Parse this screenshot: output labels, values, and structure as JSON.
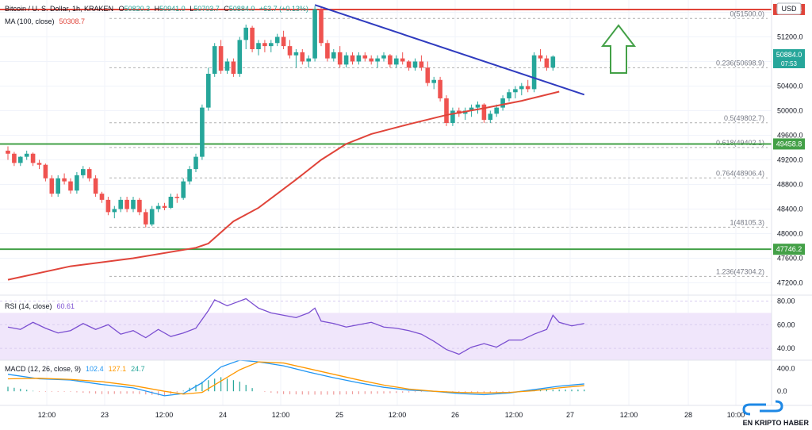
{
  "header": {
    "symbol": "Bitcoin / U. S. Dollar, 1h, KRAKEN",
    "ohlc": [
      {
        "k": "O",
        "v": "50820.3"
      },
      {
        "k": "H",
        "v": "50941.0"
      },
      {
        "k": "L",
        "v": "50703.7"
      },
      {
        "k": "C",
        "v": "50884.0"
      }
    ],
    "change": "+63.7 (+0.13%)",
    "currency": "USD"
  },
  "ma_legend": {
    "label": "MA (100, close)",
    "value": "50308.7",
    "color": "#e0443a"
  },
  "rsi_legend": {
    "label": "RSI (14, close)",
    "value": "60.61",
    "color": "#7b4fd1"
  },
  "macd_legend": {
    "label": "MACD (12, 26, close, 9)",
    "v1": "102.4",
    "v2": "127.1",
    "v3": "24.7"
  },
  "last_price": {
    "price": "50884.0",
    "countdown": "07:53"
  },
  "levels": {
    "red_label": "51645.8",
    "green1_label": "49458.8",
    "green2_label": "47746.2"
  },
  "watermark": "EN KRIPTO HABER",
  "colors": {
    "up": "#26a69a",
    "down": "#ef5350",
    "ma": "#e0443a",
    "trend": "#2f3bbf",
    "red_line": "#e0443a",
    "green_line": "#43a047",
    "arrow": "#43a047",
    "rsi": "#7b4fd1",
    "macd": "#2196f3",
    "signal": "#ff9800"
  },
  "icons": {
    "arrow": "up-arrow-icon",
    "logo": "chain-link-logo"
  },
  "chart_data": [
    {
      "type": "candlestick",
      "title": "Bitcoin / U. S. Dollar, 1h, KRAKEN",
      "ylim": [
        47000,
        51800
      ],
      "yticks": [
        47200,
        47600,
        48000,
        48400,
        48800,
        49200,
        49600,
        50000,
        50400,
        50800,
        51200,
        51600
      ],
      "xticks": [
        "12:00",
        "23",
        "12:00",
        "24",
        "12:00",
        "25",
        "12:00",
        "26",
        "12:00",
        "27",
        "12:00",
        "28",
        "10:00"
      ],
      "grid": true,
      "candles": [
        [
          49350,
          49420,
          49200,
          49300
        ],
        [
          49300,
          49330,
          49100,
          49150
        ],
        [
          49150,
          49260,
          49100,
          49250
        ],
        [
          49250,
          49350,
          49200,
          49300
        ],
        [
          49300,
          49320,
          49100,
          49150
        ],
        [
          49150,
          49200,
          49050,
          49120
        ],
        [
          49120,
          49140,
          48850,
          48900
        ],
        [
          48900,
          48950,
          48600,
          48650
        ],
        [
          48650,
          48950,
          48600,
          48900
        ],
        [
          48900,
          48980,
          48800,
          48850
        ],
        [
          48850,
          48900,
          48650,
          48700
        ],
        [
          48700,
          49000,
          48650,
          48950
        ],
        [
          48950,
          49100,
          48900,
          49050
        ],
        [
          49050,
          49080,
          48850,
          48900
        ],
        [
          48900,
          48950,
          48600,
          48650
        ],
        [
          48650,
          48680,
          48500,
          48550
        ],
        [
          48550,
          48600,
          48300,
          48350
        ],
        [
          48350,
          48450,
          48250,
          48400
        ],
        [
          48400,
          48600,
          48350,
          48550
        ],
        [
          48550,
          48600,
          48350,
          48400
        ],
        [
          48400,
          48600,
          48350,
          48550
        ],
        [
          48550,
          48580,
          48300,
          48350
        ],
        [
          48350,
          48400,
          48100,
          48150
        ],
        [
          48150,
          48450,
          48120,
          48400
        ],
        [
          48400,
          48500,
          48350,
          48450
        ],
        [
          48450,
          48500,
          48380,
          48420
        ],
        [
          48420,
          48650,
          48400,
          48600
        ],
        [
          48600,
          48650,
          48500,
          48580
        ],
        [
          48580,
          48900,
          48550,
          48850
        ],
        [
          48850,
          49100,
          48800,
          49050
        ],
        [
          49050,
          49300,
          49000,
          49250
        ],
        [
          49250,
          50100,
          49200,
          50050
        ],
        [
          50050,
          50700,
          50000,
          50600
        ],
        [
          50600,
          51100,
          50550,
          51050
        ],
        [
          51050,
          51150,
          50600,
          50650
        ],
        [
          50650,
          50850,
          50600,
          50800
        ],
        [
          50800,
          50850,
          50550,
          50600
        ],
        [
          50600,
          51200,
          50550,
          51150
        ],
        [
          51150,
          51400,
          51000,
          51350
        ],
        [
          51350,
          51380,
          50950,
          51000
        ],
        [
          51000,
          51150,
          50900,
          51100
        ],
        [
          51100,
          51150,
          50950,
          51050
        ],
        [
          51050,
          51150,
          50950,
          51100
        ],
        [
          51100,
          51250,
          51050,
          51200
        ],
        [
          51200,
          51300,
          51000,
          51050
        ],
        [
          51050,
          51150,
          50850,
          50900
        ],
        [
          50900,
          51000,
          50700,
          50950
        ],
        [
          50950,
          51000,
          50750,
          50800
        ],
        [
          50800,
          50900,
          50700,
          50850
        ],
        [
          50850,
          51700,
          50800,
          51650
        ],
        [
          51650,
          51680,
          51050,
          51100
        ],
        [
          51100,
          51150,
          50800,
          50850
        ],
        [
          50850,
          51000,
          50800,
          50950
        ],
        [
          50950,
          51050,
          50700,
          50750
        ],
        [
          50750,
          50950,
          50700,
          50900
        ],
        [
          50900,
          50950,
          50750,
          50800
        ],
        [
          50800,
          50950,
          50750,
          50900
        ],
        [
          50900,
          50950,
          50800,
          50850
        ],
        [
          50850,
          50900,
          50750,
          50800
        ],
        [
          50800,
          50900,
          50700,
          50850
        ],
        [
          50850,
          50950,
          50800,
          50900
        ],
        [
          50900,
          50920,
          50700,
          50750
        ],
        [
          50750,
          50900,
          50700,
          50850
        ],
        [
          50850,
          50950,
          50750,
          50800
        ],
        [
          50800,
          50820,
          50650,
          50700
        ],
        [
          50700,
          50850,
          50650,
          50800
        ],
        [
          50800,
          50900,
          50650,
          50700
        ],
        [
          50700,
          50800,
          50400,
          50450
        ],
        [
          50450,
          50550,
          50350,
          50500
        ],
        [
          50500,
          50550,
          50150,
          50200
        ],
        [
          50200,
          50250,
          49750,
          49800
        ],
        [
          49800,
          50050,
          49750,
          50000
        ],
        [
          50000,
          50050,
          49900,
          49950
        ],
        [
          49950,
          50050,
          49850,
          50000
        ],
        [
          50000,
          50100,
          49900,
          50050
        ],
        [
          50050,
          50150,
          49950,
          50100
        ],
        [
          50100,
          50120,
          49800,
          49850
        ],
        [
          49850,
          50000,
          49800,
          49950
        ],
        [
          49950,
          50100,
          49900,
          50050
        ],
        [
          50050,
          50250,
          50000,
          50200
        ],
        [
          50200,
          50350,
          50150,
          50300
        ],
        [
          50300,
          50400,
          50200,
          50350
        ],
        [
          50350,
          50450,
          50250,
          50400
        ],
        [
          50400,
          50500,
          50300,
          50350
        ],
        [
          50350,
          50950,
          50300,
          50900
        ],
        [
          50900,
          51000,
          50800,
          50850
        ],
        [
          50850,
          50900,
          50650,
          50700
        ],
        [
          50700,
          50900,
          50650,
          50880
        ]
      ],
      "ma100": [
        [
          0,
          47250
        ],
        [
          10,
          47470
        ],
        [
          20,
          47600
        ],
        [
          30,
          47770
        ],
        [
          32,
          47840
        ],
        [
          36,
          48200
        ],
        [
          40,
          48420
        ],
        [
          46,
          48880
        ],
        [
          50,
          49200
        ],
        [
          54,
          49460
        ],
        [
          58,
          49620
        ],
        [
          64,
          49780
        ],
        [
          70,
          49930
        ],
        [
          76,
          50040
        ],
        [
          82,
          50160
        ],
        [
          88,
          50310
        ]
      ],
      "trendline": [
        [
          49,
          51720
        ],
        [
          92,
          50260
        ]
      ],
      "horizontal_levels": [
        51645.8,
        49458.8,
        47746.2
      ],
      "fibonacci": [
        {
          "label": "0(51500.0)",
          "price": 51500.0
        },
        {
          "label": "0.236(50698.9)",
          "price": 50698.9
        },
        {
          "label": "0.5(49802.7)",
          "price": 49802.7
        },
        {
          "label": "0.618(49402.1)",
          "price": 49402.1
        },
        {
          "label": "0.764(48906.4)",
          "price": 48906.4
        },
        {
          "label": "1(48105.3)",
          "price": 48105.3
        },
        {
          "label": "1.236(47304.2)",
          "price": 47304.2
        }
      ]
    },
    {
      "type": "line",
      "title": "RSI (14, close)",
      "ylim": [
        30,
        85
      ],
      "yticks": [
        40,
        60,
        80
      ],
      "band": [
        30,
        70
      ],
      "series": [
        {
          "name": "RSI",
          "values": [
            [
              0,
              58
            ],
            [
              2,
              56
            ],
            [
              4,
              62
            ],
            [
              6,
              57
            ],
            [
              8,
              53
            ],
            [
              10,
              55
            ],
            [
              12,
              61
            ],
            [
              14,
              56
            ],
            [
              16,
              60
            ],
            [
              18,
              52
            ],
            [
              20,
              55
            ],
            [
              22,
              49
            ],
            [
              24,
              56
            ],
            [
              26,
              50
            ],
            [
              28,
              53
            ],
            [
              30,
              57
            ],
            [
              32,
              72
            ],
            [
              33,
              81
            ],
            [
              35,
              76
            ],
            [
              36,
              78
            ],
            [
              38,
              82
            ],
            [
              40,
              74
            ],
            [
              42,
              70
            ],
            [
              44,
              68
            ],
            [
              46,
              66
            ],
            [
              48,
              70
            ],
            [
              49,
              74
            ],
            [
              50,
              63
            ],
            [
              52,
              61
            ],
            [
              54,
              58
            ],
            [
              56,
              60
            ],
            [
              58,
              62
            ],
            [
              60,
              58
            ],
            [
              62,
              57
            ],
            [
              64,
              55
            ],
            [
              66,
              52
            ],
            [
              68,
              46
            ],
            [
              70,
              39
            ],
            [
              72,
              35
            ],
            [
              74,
              41
            ],
            [
              76,
              44
            ],
            [
              78,
              41
            ],
            [
              80,
              47
            ],
            [
              82,
              47
            ],
            [
              84,
              52
            ],
            [
              86,
              56
            ],
            [
              87,
              68
            ],
            [
              88,
              62
            ],
            [
              90,
              59
            ],
            [
              92,
              61
            ]
          ]
        }
      ]
    },
    {
      "type": "line",
      "title": "MACD (12, 26, close, 9)",
      "ylim": [
        -250,
        550
      ],
      "yticks": [
        0,
        400
      ],
      "series": [
        {
          "name": "MACD",
          "values": [
            [
              0,
              300
            ],
            [
              5,
              220
            ],
            [
              10,
              200
            ],
            [
              15,
              120
            ],
            [
              20,
              60
            ],
            [
              25,
              -80
            ],
            [
              28,
              -40
            ],
            [
              31,
              150
            ],
            [
              34,
              430
            ],
            [
              37,
              550
            ],
            [
              40,
              520
            ],
            [
              44,
              450
            ],
            [
              48,
              340
            ],
            [
              52,
              240
            ],
            [
              56,
              150
            ],
            [
              60,
              70
            ],
            [
              64,
              20
            ],
            [
              68,
              0
            ],
            [
              72,
              -40
            ],
            [
              76,
              -60
            ],
            [
              80,
              -30
            ],
            [
              84,
              30
            ],
            [
              88,
              90
            ],
            [
              92,
              130
            ]
          ]
        },
        {
          "name": "Signal",
          "values": [
            [
              0,
              220
            ],
            [
              5,
              230
            ],
            [
              10,
              210
            ],
            [
              15,
              170
            ],
            [
              20,
              100
            ],
            [
              25,
              0
            ],
            [
              28,
              -50
            ],
            [
              31,
              -20
            ],
            [
              34,
              180
            ],
            [
              37,
              380
            ],
            [
              40,
              520
            ],
            [
              44,
              500
            ],
            [
              48,
              400
            ],
            [
              52,
              300
            ],
            [
              56,
              200
            ],
            [
              60,
              110
            ],
            [
              64,
              40
            ],
            [
              68,
              0
            ],
            [
              72,
              -20
            ],
            [
              76,
              -30
            ],
            [
              80,
              -20
            ],
            [
              84,
              10
            ],
            [
              88,
              60
            ],
            [
              92,
              100
            ]
          ]
        }
      ]
    }
  ]
}
